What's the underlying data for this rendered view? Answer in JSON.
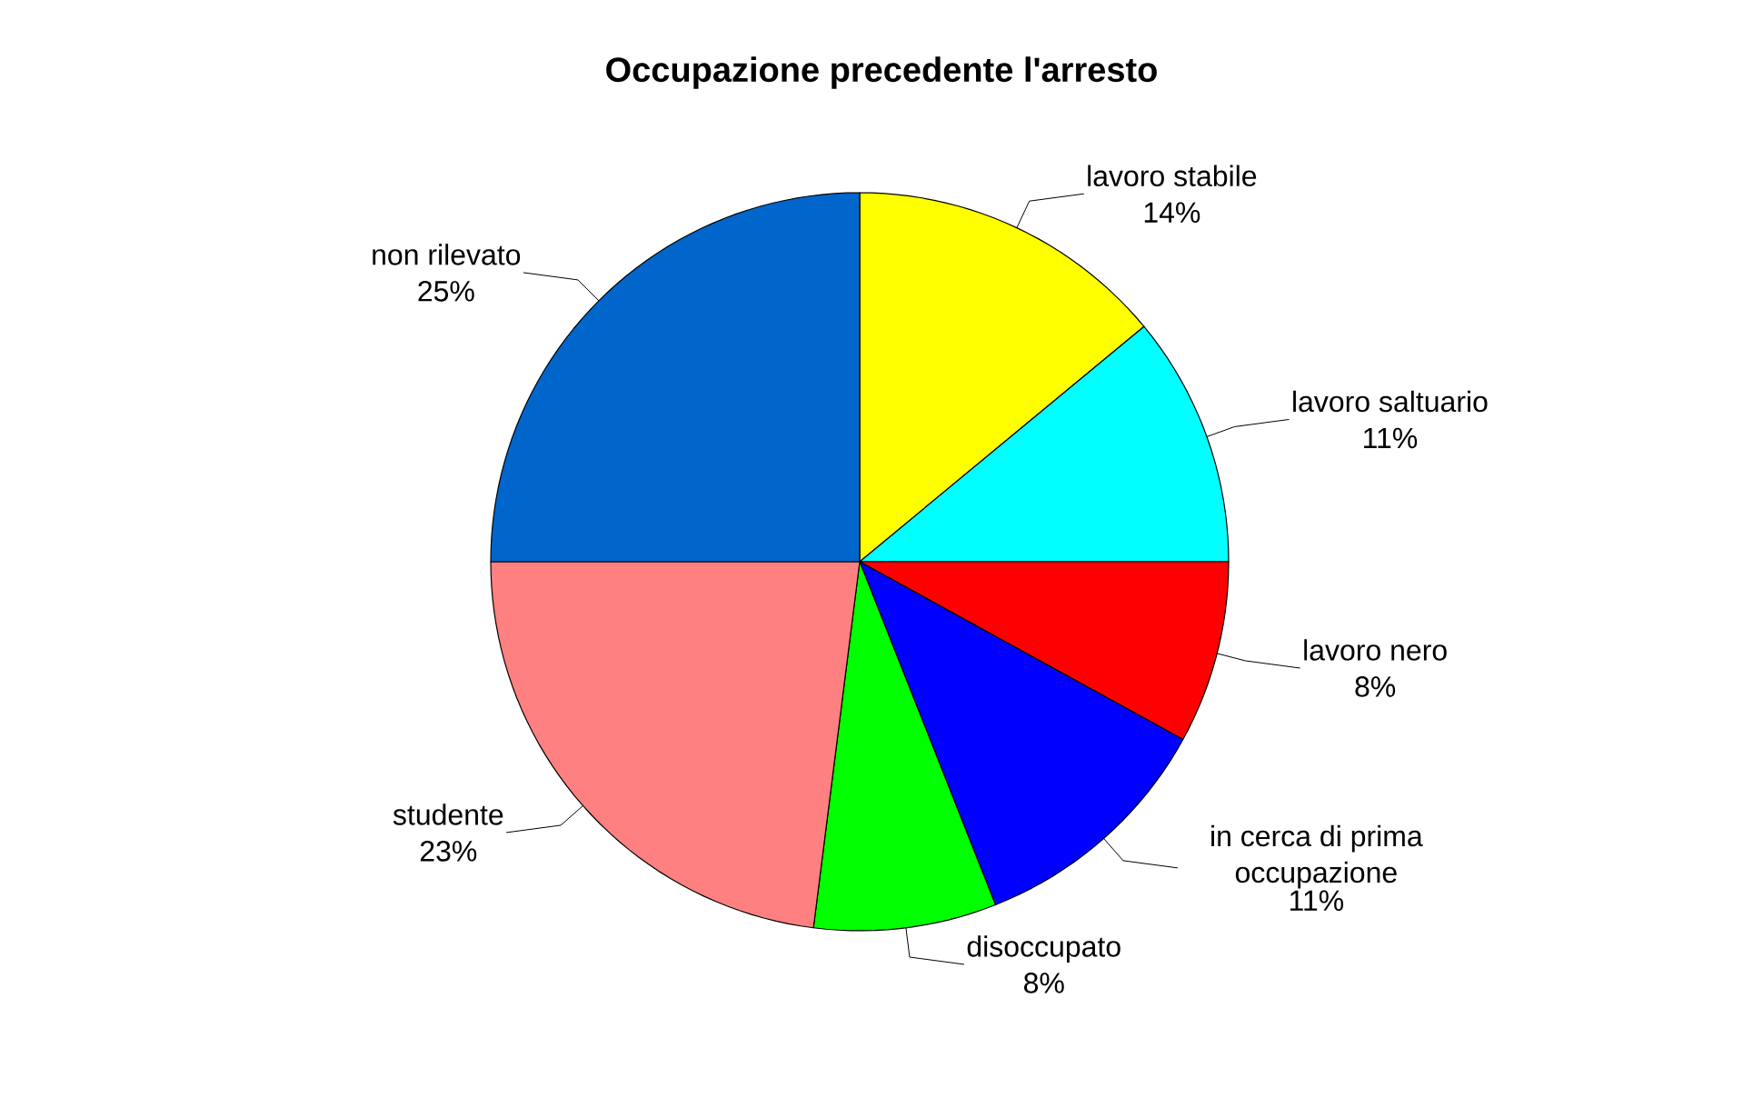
{
  "chart_data": {
    "type": "pie",
    "title": "Occupazione precedente l'arresto",
    "categories": [
      "lavoro stabile",
      "lavoro saltuario",
      "lavoro nero",
      "in cerca di prima occupazione",
      "disoccupato",
      "studente",
      "non rilevato"
    ],
    "values": [
      14,
      11,
      8,
      11,
      8,
      23,
      25
    ],
    "value_labels": [
      "14%",
      "11%",
      "8%",
      "11%",
      "8%",
      "23%",
      "25%"
    ],
    "colors": [
      "#ffff00",
      "#00ffff",
      "#ff0000",
      "#0000ff",
      "#00ff00",
      "#ff8080",
      "#0066cc"
    ]
  }
}
